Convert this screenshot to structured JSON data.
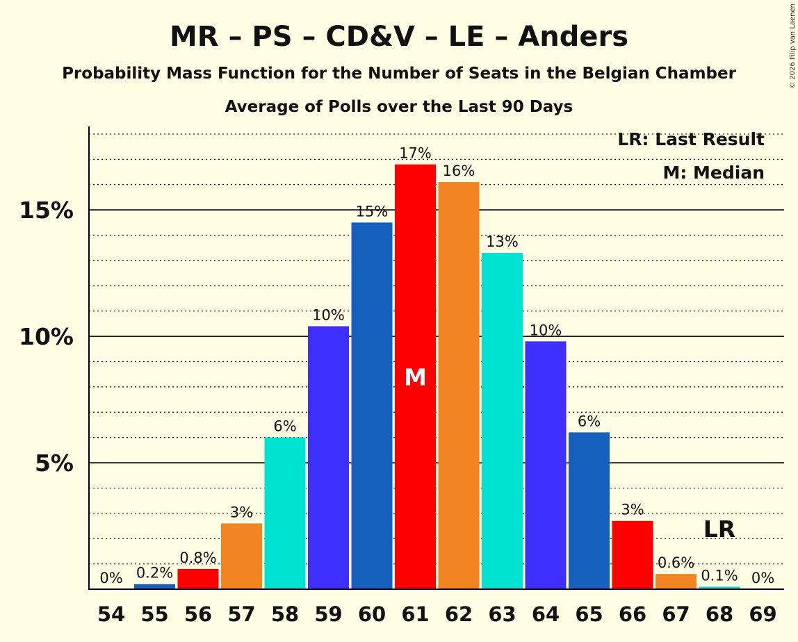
{
  "chart_data": {
    "type": "bar",
    "title": "MR – PS – CD&V – LE – Anders",
    "subtitle": "Probability Mass Function for the Number of Seats in the Belgian Chamber",
    "subtitle2": "Average of Polls over the Last 90 Days",
    "categories": [
      "54",
      "55",
      "56",
      "57",
      "58",
      "59",
      "60",
      "61",
      "62",
      "63",
      "64",
      "65",
      "66",
      "67",
      "68",
      "69"
    ],
    "values": [
      0,
      0.2,
      0.8,
      2.6,
      6.0,
      10.4,
      14.5,
      16.8,
      16.1,
      13.3,
      9.8,
      6.2,
      2.7,
      0.6,
      0.1,
      0
    ],
    "labels": [
      "0%",
      "0.2%",
      "0.8%",
      "3%",
      "6%",
      "10%",
      "15%",
      "17%",
      "16%",
      "13%",
      "10%",
      "6%",
      "3%",
      "0.6%",
      "0.1%",
      "0%"
    ],
    "colors": [
      "#1560BD",
      "#1560BD",
      "#FF0000",
      "#F28522",
      "#00E3D3",
      "#3E2EFF",
      "#1560BD",
      "#FF0000",
      "#F28522",
      "#00E3D3",
      "#3E2EFF",
      "#1560BD",
      "#FF0000",
      "#F28522",
      "#00E3D3",
      "#3E2EFF"
    ],
    "ylim": [
      0,
      18.3
    ],
    "yticks": [
      5,
      10,
      15
    ],
    "ytick_labels": [
      "5%",
      "10%",
      "15%"
    ],
    "median_category": "61",
    "median_mark": "M",
    "last_result_category": "68",
    "last_result_mark": "LR",
    "legend": [
      "LR: Last Result",
      "M: Median"
    ],
    "copyright": "© 2026 Filip van Laenen"
  }
}
